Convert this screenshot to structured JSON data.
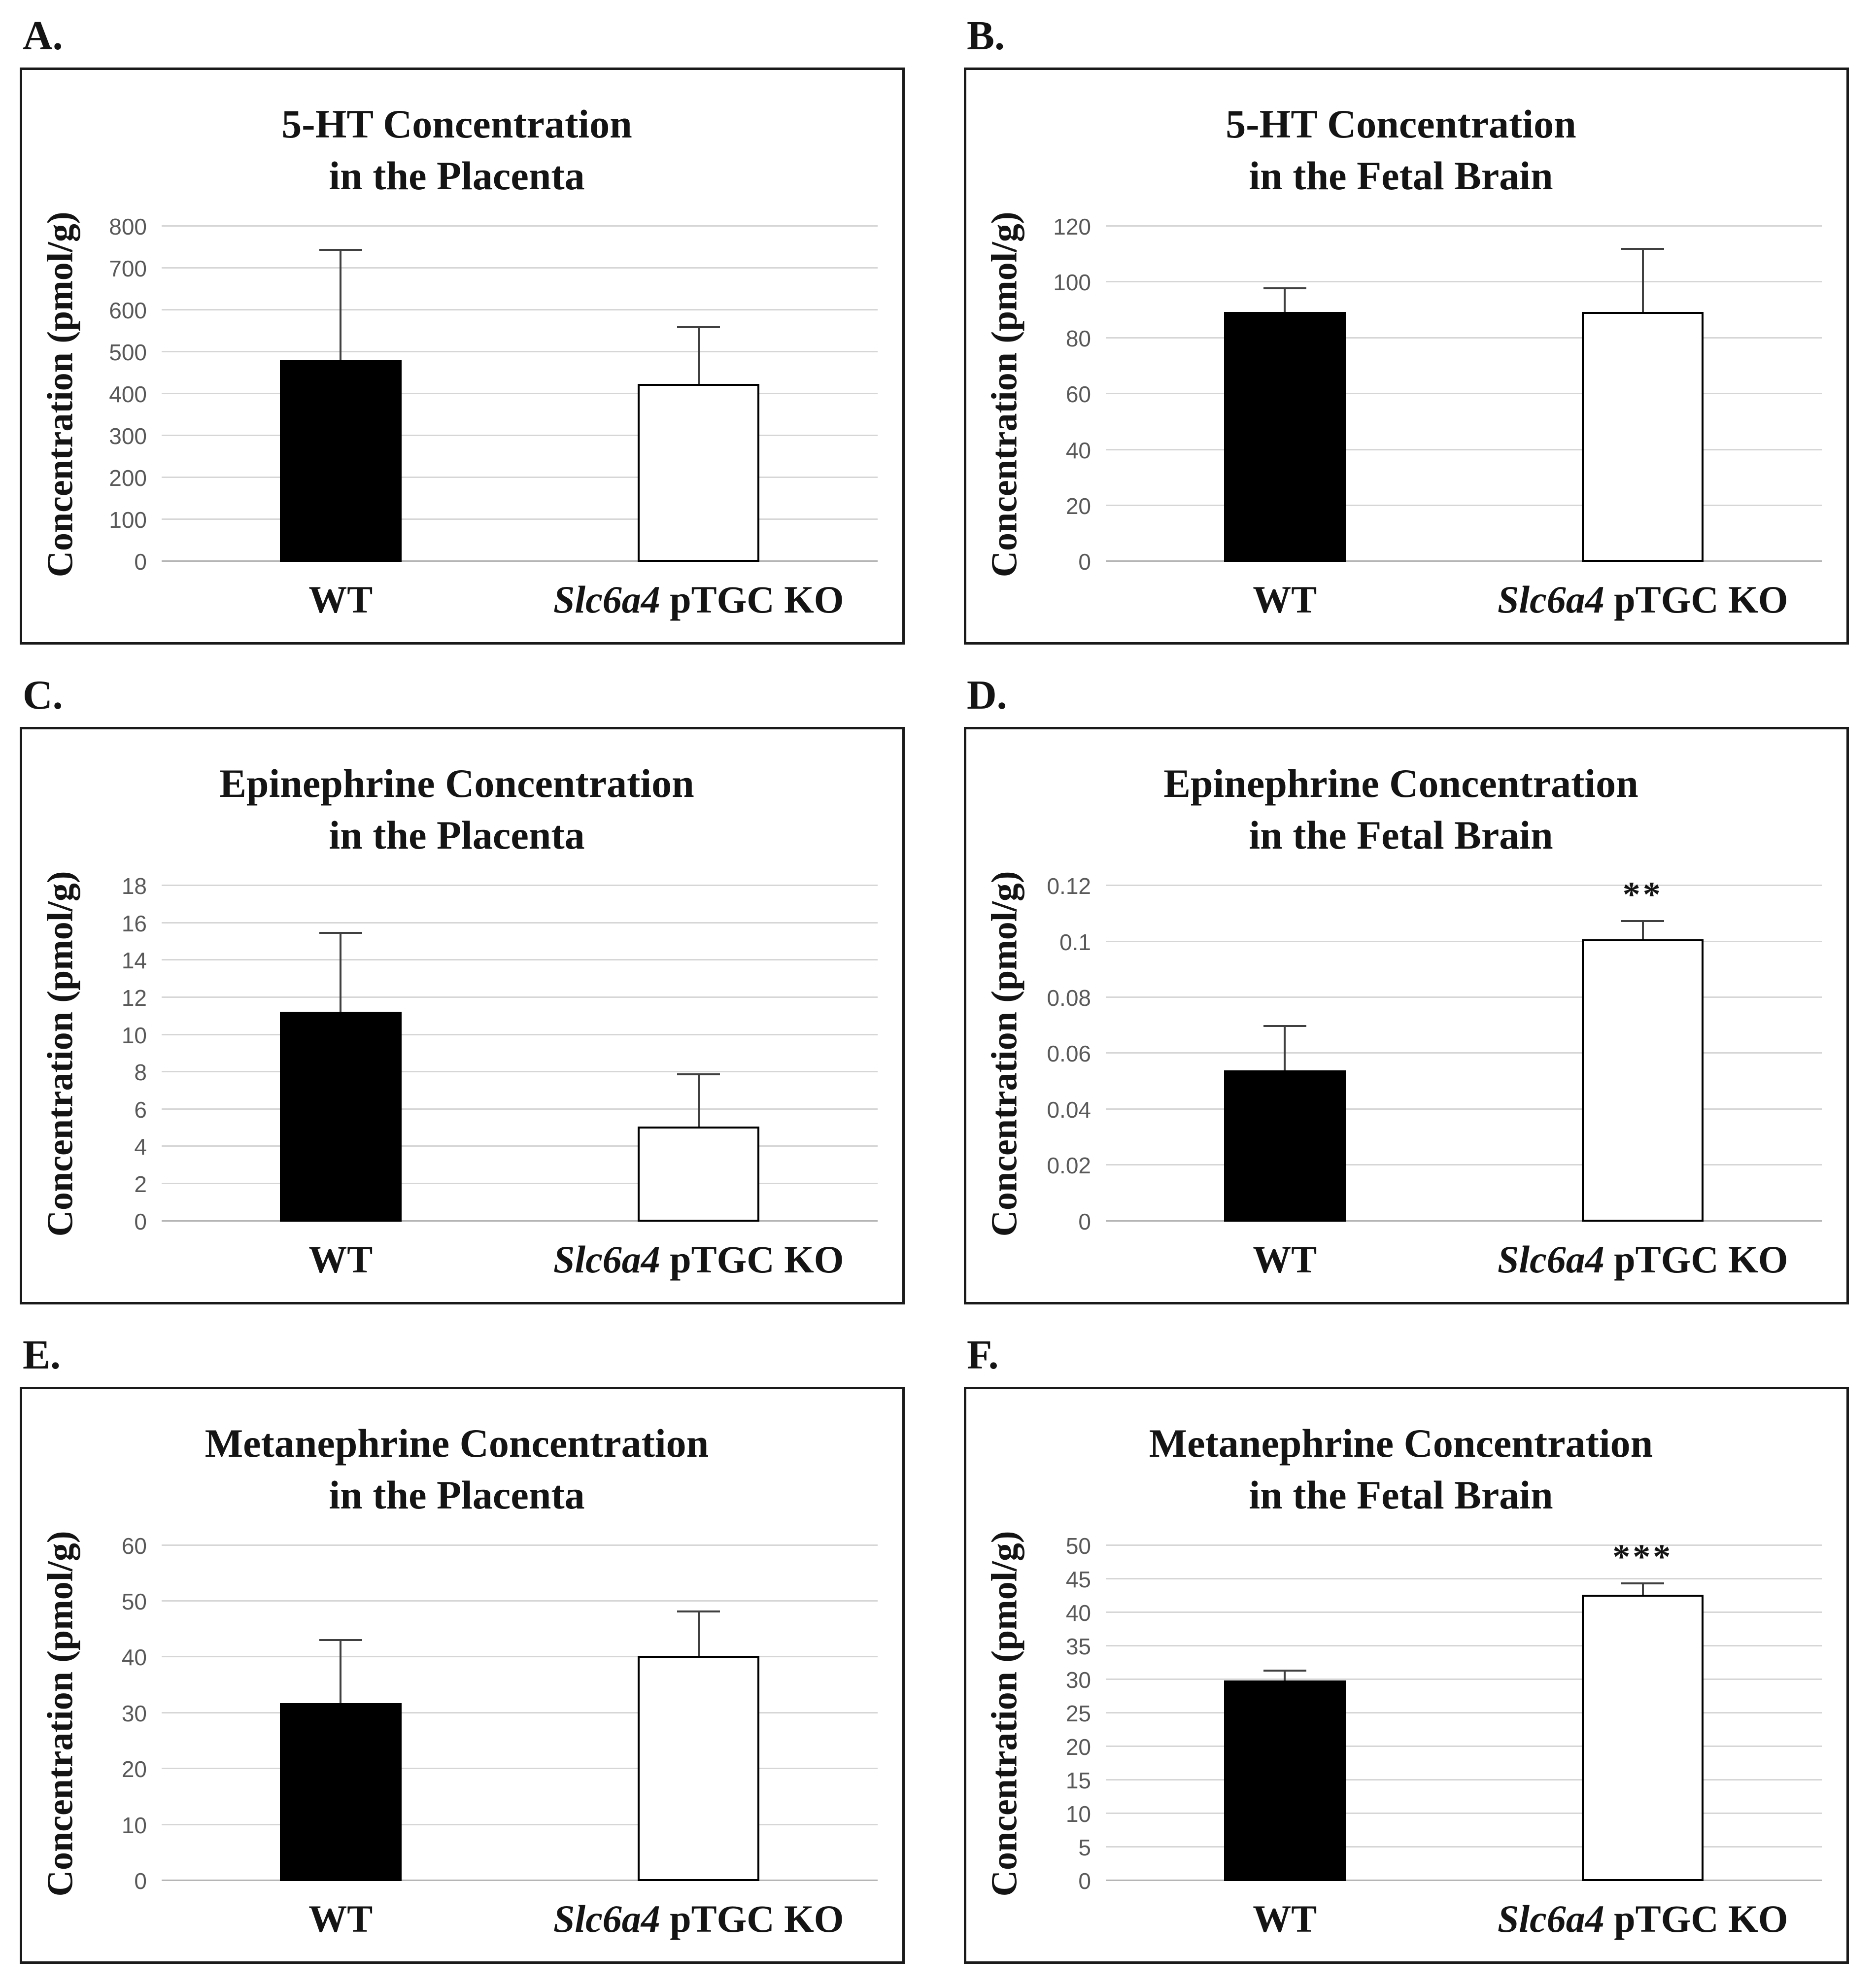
{
  "figure": {
    "description_note": "Six-panel bar chart figure comparing WT vs Slc6a4 pTGC KO"
  },
  "colors": {
    "panel_border": "#1a1a1a",
    "bar_fill_wt": "#000000",
    "bar_fill_ko": "#ffffff",
    "bar_stroke": "#000000",
    "gridline": "#d6d6d6",
    "baseline": "#b5b5b5",
    "tick_text": "#595959",
    "error_bar": "#404040",
    "text": "#141414"
  },
  "chart_data": [
    {
      "type": "bar",
      "panel_letter": "A.",
      "title_lines": [
        "5-HT Concentration",
        "in the Placenta"
      ],
      "ylabel": "Concentration (pmol/g)",
      "ylim": [
        0,
        800
      ],
      "grid": true,
      "legend": "none",
      "yticks": [
        {
          "value": 0,
          "label": "0"
        },
        {
          "value": 100,
          "label": "100"
        },
        {
          "value": 200,
          "label": "200"
        },
        {
          "value": 300,
          "label": "300"
        },
        {
          "value": 400,
          "label": "400"
        },
        {
          "value": 500,
          "label": "500"
        },
        {
          "value": 600,
          "label": "600"
        },
        {
          "value": 700,
          "label": "700"
        },
        {
          "value": 800,
          "label": "800"
        }
      ],
      "bars": [
        {
          "category_parts": [
            {
              "text": "WT",
              "italic": false
            }
          ],
          "value": 483,
          "error_plus": 262,
          "fill": "wt",
          "sig": ""
        },
        {
          "category_parts": [
            {
              "text": "Slc6a4",
              "italic": true
            },
            {
              "text": " pTGC KO",
              "italic": false
            }
          ],
          "value": 425,
          "error_plus": 135,
          "fill": "ko",
          "sig": ""
        }
      ]
    },
    {
      "type": "bar",
      "panel_letter": "B.",
      "title_lines": [
        "5-HT Concentration",
        "in the Fetal Brain"
      ],
      "ylabel": "Concentration (pmol/g)",
      "ylim": [
        0,
        120
      ],
      "grid": true,
      "legend": "none",
      "yticks": [
        {
          "value": 0,
          "label": "0"
        },
        {
          "value": 20,
          "label": "20"
        },
        {
          "value": 40,
          "label": "40"
        },
        {
          "value": 60,
          "label": "60"
        },
        {
          "value": 80,
          "label": "80"
        },
        {
          "value": 100,
          "label": "100"
        },
        {
          "value": 120,
          "label": "120"
        }
      ],
      "bars": [
        {
          "category_parts": [
            {
              "text": "WT",
              "italic": false
            }
          ],
          "value": 89.5,
          "error_plus": 8.5,
          "fill": "wt",
          "sig": ""
        },
        {
          "category_parts": [
            {
              "text": "Slc6a4",
              "italic": true
            },
            {
              "text": " pTGC KO",
              "italic": false
            }
          ],
          "value": 89.5,
          "error_plus": 22.5,
          "fill": "ko",
          "sig": ""
        }
      ]
    },
    {
      "type": "bar",
      "panel_letter": "C.",
      "title_lines": [
        "Epinephrine Concentration",
        "in the Placenta"
      ],
      "ylabel": "Concentration (pmol/g)",
      "ylim": [
        0,
        18
      ],
      "grid": true,
      "legend": "none",
      "yticks": [
        {
          "value": 0,
          "label": "0"
        },
        {
          "value": 2,
          "label": "2"
        },
        {
          "value": 4,
          "label": "4"
        },
        {
          "value": 6,
          "label": "6"
        },
        {
          "value": 8,
          "label": "8"
        },
        {
          "value": 10,
          "label": "10"
        },
        {
          "value": 12,
          "label": "12"
        },
        {
          "value": 14,
          "label": "14"
        },
        {
          "value": 16,
          "label": "16"
        },
        {
          "value": 18,
          "label": "18"
        }
      ],
      "bars": [
        {
          "category_parts": [
            {
              "text": "WT",
              "italic": false
            }
          ],
          "value": 11.25,
          "error_plus": 4.25,
          "fill": "wt",
          "sig": ""
        },
        {
          "category_parts": [
            {
              "text": "Slc6a4",
              "italic": true
            },
            {
              "text": " pTGC KO",
              "italic": false
            }
          ],
          "value": 5.1,
          "error_plus": 2.8,
          "fill": "ko",
          "sig": ""
        }
      ]
    },
    {
      "type": "bar",
      "panel_letter": "D.",
      "title_lines": [
        "Epinephrine Concentration",
        "in the Fetal Brain"
      ],
      "ylabel": "Concentration (pmol/g)",
      "ylim": [
        0,
        0.12
      ],
      "grid": true,
      "legend": "none",
      "yticks": [
        {
          "value": 0,
          "label": "0"
        },
        {
          "value": 0.02,
          "label": "0.02"
        },
        {
          "value": 0.04,
          "label": "0.04"
        },
        {
          "value": 0.06,
          "label": "0.06"
        },
        {
          "value": 0.08,
          "label": "0.08"
        },
        {
          "value": 0.1,
          "label": "0.1"
        },
        {
          "value": 0.12,
          "label": "0.12"
        }
      ],
      "bars": [
        {
          "category_parts": [
            {
              "text": "WT",
              "italic": false
            }
          ],
          "value": 0.054,
          "error_plus": 0.016,
          "fill": "wt",
          "sig": ""
        },
        {
          "category_parts": [
            {
              "text": "Slc6a4",
              "italic": true
            },
            {
              "text": " pTGC KO",
              "italic": false
            }
          ],
          "value": 0.101,
          "error_plus": 0.0065,
          "fill": "ko",
          "sig": "**"
        }
      ]
    },
    {
      "type": "bar",
      "panel_letter": "E.",
      "title_lines": [
        "Metanephrine Concentration",
        "in the Placenta"
      ],
      "ylabel": "Concentration (pmol/g)",
      "ylim": [
        0,
        60
      ],
      "grid": true,
      "legend": "none",
      "yticks": [
        {
          "value": 0,
          "label": "0"
        },
        {
          "value": 10,
          "label": "10"
        },
        {
          "value": 20,
          "label": "20"
        },
        {
          "value": 30,
          "label": "30"
        },
        {
          "value": 40,
          "label": "40"
        },
        {
          "value": 50,
          "label": "50"
        },
        {
          "value": 60,
          "label": "60"
        }
      ],
      "bars": [
        {
          "category_parts": [
            {
              "text": "WT",
              "italic": false
            }
          ],
          "value": 31.8,
          "error_plus": 11.3,
          "fill": "wt",
          "sig": ""
        },
        {
          "category_parts": [
            {
              "text": "Slc6a4",
              "italic": true
            },
            {
              "text": " pTGC KO",
              "italic": false
            }
          ],
          "value": 40.3,
          "error_plus": 7.9,
          "fill": "ko",
          "sig": ""
        }
      ]
    },
    {
      "type": "bar",
      "panel_letter": "F.",
      "title_lines": [
        "Metanephrine Concentration",
        "in the Fetal Brain"
      ],
      "ylabel": "Concentration (pmol/g)",
      "ylim": [
        0,
        50
      ],
      "grid": true,
      "legend": "none",
      "yticks": [
        {
          "value": 0,
          "label": "0"
        },
        {
          "value": 5,
          "label": "5"
        },
        {
          "value": 10,
          "label": "10"
        },
        {
          "value": 15,
          "label": "15"
        },
        {
          "value": 20,
          "label": "20"
        },
        {
          "value": 25,
          "label": "25"
        },
        {
          "value": 30,
          "label": "30"
        },
        {
          "value": 35,
          "label": "35"
        },
        {
          "value": 40,
          "label": "40"
        },
        {
          "value": 45,
          "label": "45"
        },
        {
          "value": 50,
          "label": "50"
        }
      ],
      "bars": [
        {
          "category_parts": [
            {
              "text": "WT",
              "italic": false
            }
          ],
          "value": 29.9,
          "error_plus": 1.5,
          "fill": "wt",
          "sig": ""
        },
        {
          "category_parts": [
            {
              "text": "Slc6a4",
              "italic": true
            },
            {
              "text": " pTGC KO",
              "italic": false
            }
          ],
          "value": 42.7,
          "error_plus": 1.7,
          "fill": "ko",
          "sig": "***"
        }
      ]
    }
  ]
}
